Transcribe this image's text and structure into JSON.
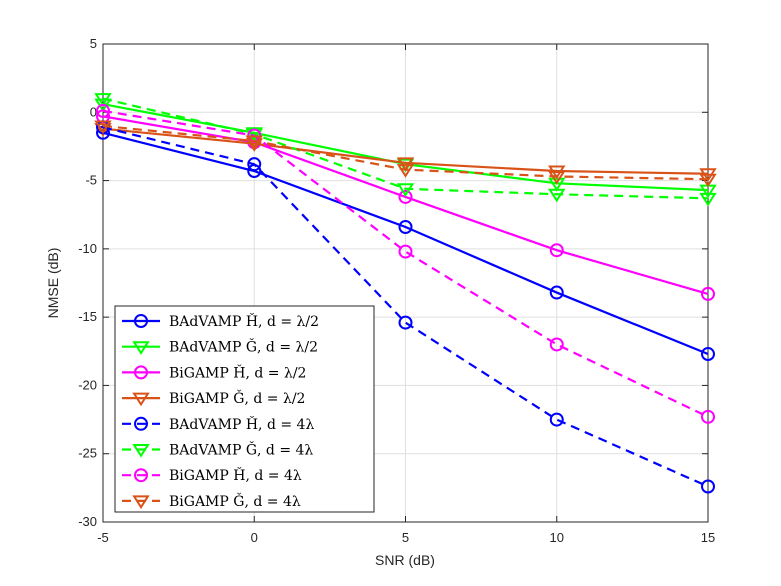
{
  "chart_data": {
    "type": "line",
    "title": "",
    "xlabel": "SNR (dB)",
    "ylabel": "NMSE (dB)",
    "xlim": [
      -5,
      15
    ],
    "ylim": [
      -30,
      5
    ],
    "grid": true,
    "legend_position": "bottom-left",
    "xticks": [
      -5,
      0,
      5,
      10,
      15
    ],
    "yticks": [
      5,
      0,
      -5,
      -10,
      -15,
      -20,
      -25,
      -30
    ],
    "x": [
      -5,
      0,
      5,
      10,
      15
    ],
    "series": [
      {
        "name": "BAdVAMP Ȟ, d = λ/2",
        "color": "#0000ff",
        "dash": "solid",
        "marker": "circle",
        "values": [
          -1.5,
          -4.3,
          -8.4,
          -13.2,
          -17.7
        ]
      },
      {
        "name": "BAdVAMP Ǧ, d = λ/2",
        "color": "#00ff00",
        "dash": "solid",
        "marker": "triangle-down",
        "values": [
          0.6,
          -1.5,
          -3.8,
          -5.2,
          -5.7
        ]
      },
      {
        "name": "BiGAMP Ȟ, d = λ/2",
        "color": "#ff00ff",
        "dash": "solid",
        "marker": "circle",
        "values": [
          -0.3,
          -2.2,
          -6.2,
          -10.1,
          -13.3
        ]
      },
      {
        "name": "BiGAMP Ǧ, d = λ/2",
        "color": "#d95319",
        "dash": "solid",
        "marker": "triangle-down",
        "values": [
          -1.2,
          -2.3,
          -3.7,
          -4.3,
          -4.5
        ]
      },
      {
        "name": "BAdVAMP Ȟ, d = 4λ",
        "color": "#0000ff",
        "dash": "dashed",
        "marker": "circle",
        "values": [
          -1.1,
          -3.8,
          -15.4,
          -22.5,
          -27.4
        ]
      },
      {
        "name": "BAdVAMP Ǧ, d = 4λ",
        "color": "#00ff00",
        "dash": "dashed",
        "marker": "triangle-down",
        "values": [
          1.0,
          -1.6,
          -5.6,
          -6.0,
          -6.3
        ]
      },
      {
        "name": "BiGAMP Ȟ, d = 4λ",
        "color": "#ff00ff",
        "dash": "dashed",
        "marker": "circle",
        "values": [
          0.1,
          -1.7,
          -10.2,
          -17.0,
          -22.3
        ]
      },
      {
        "name": "BiGAMP Ǧ, d = 4λ",
        "color": "#d95319",
        "dash": "dashed",
        "marker": "triangle-down",
        "values": [
          -1.0,
          -2.1,
          -4.2,
          -4.7,
          -4.9
        ]
      }
    ]
  }
}
